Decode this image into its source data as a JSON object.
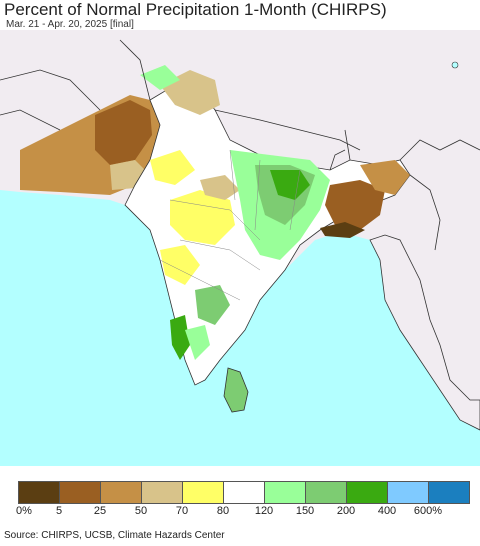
{
  "header": {
    "title": "Percent of Normal Precipitation 1-Month (CHIRPS)",
    "subtitle": "Mar. 21 - Apr. 20, 2025 [final]"
  },
  "map": {
    "ocean_color": "#b3ffff",
    "land_outside_color": "#f1ecf1",
    "border_color": "#333333"
  },
  "legend": {
    "colors": [
      "#5b3e12",
      "#9a5f22",
      "#c59046",
      "#d8c38a",
      "#ffff66",
      "#ffffff",
      "#99ff99",
      "#7dcc72",
      "#3aaa11",
      "#7fcaff",
      "#1b7fbf"
    ],
    "labels": [
      "0%",
      "5",
      "25",
      "50",
      "70",
      "80",
      "120",
      "150",
      "200",
      "400",
      "600%"
    ]
  },
  "footer": {
    "source": "Source: CHIRPS, UCSB, Climate Hazards Center"
  }
}
